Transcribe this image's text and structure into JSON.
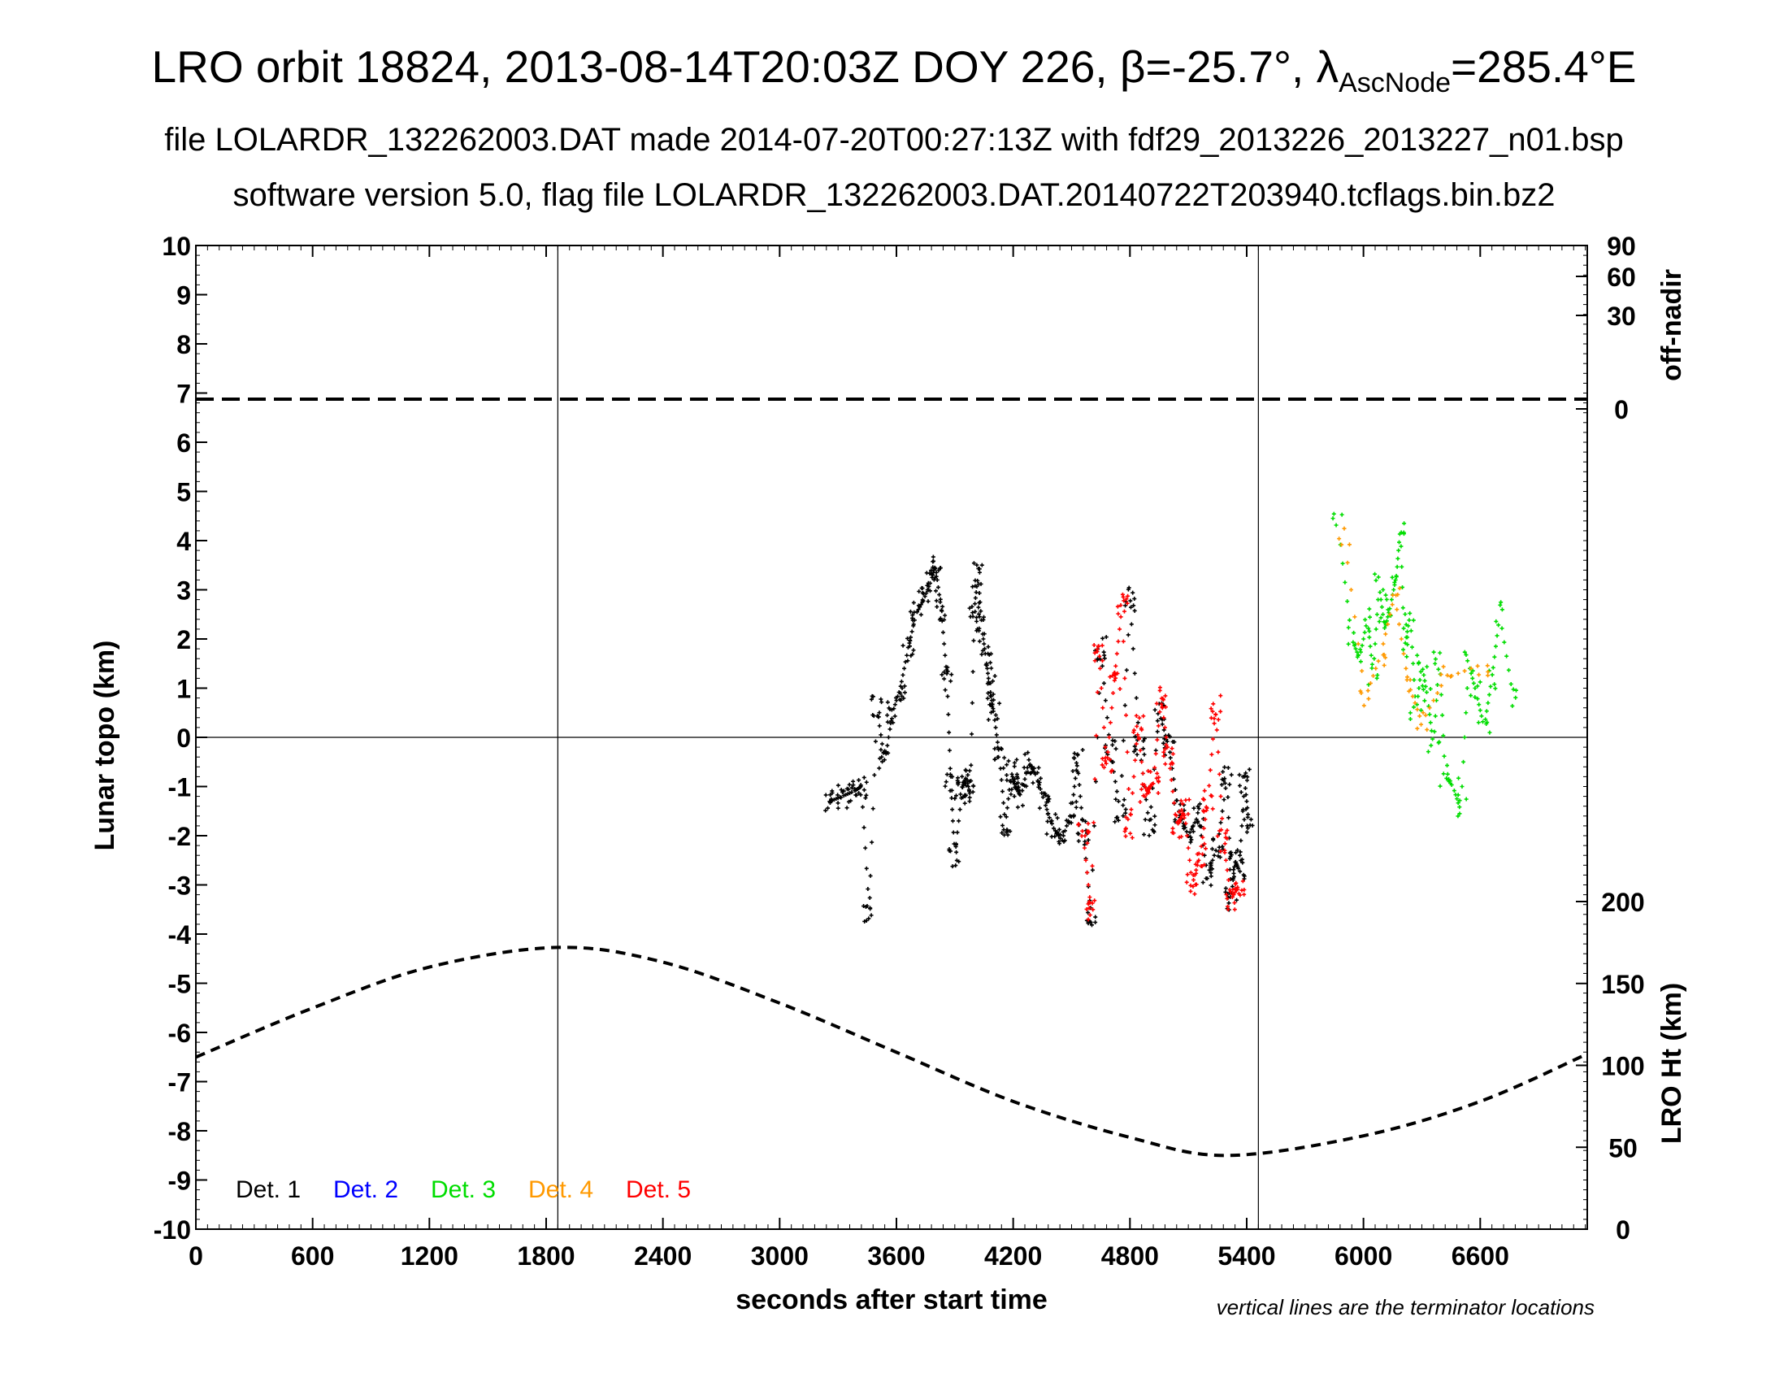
{
  "title": {
    "main_prefix": "LRO orbit 18824, 2013-08-14T20:03Z DOY 226, β=-25.7°, λ",
    "main_subscript": "AscNode",
    "main_suffix": "=285.4°E",
    "line2": "file LOLARDR_132262003.DAT made 2014-07-20T00:27:13Z with fdf29_2013226_2013227_n01.bsp",
    "line3": "software version 5.0, flag file LOLARDR_132262003.DAT.20140722T203940.tcflags.bin.bz2"
  },
  "chart_data": {
    "type": "scatter",
    "xlabel": "seconds after start time",
    "ylabel": "Lunar topo (km)",
    "xlim": [
      0,
      7150
    ],
    "ylim": [
      -10,
      10
    ],
    "xticks": [
      0,
      600,
      1200,
      1800,
      2400,
      3000,
      3600,
      4200,
      4800,
      5400,
      6000,
      6600
    ],
    "yticks": [
      -10,
      -9,
      -8,
      -7,
      -6,
      -5,
      -4,
      -3,
      -2,
      -1,
      0,
      1,
      2,
      3,
      4,
      5,
      6,
      7,
      8,
      9,
      10
    ],
    "terminator_lines_x": [
      1860,
      5460
    ],
    "zero_line_y": 0,
    "note": "vertical lines are the terminator locations",
    "right_axis_offnadir": {
      "label": "off-nadir",
      "ticks": [
        0,
        30,
        60,
        90
      ],
      "series_value_deg": 0
    },
    "right_axis_height": {
      "label": "LRO Ht (km)",
      "ticks": [
        0,
        50,
        100,
        150,
        200
      ],
      "series": {
        "name": "LRO Ht",
        "x": [
          0,
          600,
          1200,
          1860,
          2400,
          3000,
          3600,
          4200,
          4800,
          5300,
          6000,
          6600,
          7150
        ],
        "values": [
          105,
          135,
          160,
          172,
          163,
          138,
          108,
          78,
          56,
          45,
          57,
          78,
          107
        ]
      }
    },
    "legend": [
      {
        "name": "Det. 1",
        "color": "#000000"
      },
      {
        "name": "Det. 2",
        "color": "#0000ff"
      },
      {
        "name": "Det. 3",
        "color": "#00dd00"
      },
      {
        "name": "Det. 4",
        "color": "#ff9900"
      },
      {
        "name": "Det. 5",
        "color": "#ff0000"
      }
    ],
    "topo_series": [
      {
        "name": "Det. 1 / multi-detector track (dark)",
        "color": "#000000",
        "x": [
          3260,
          3320,
          3380,
          3420,
          3460,
          3500,
          3540,
          3580,
          3620,
          3660,
          3700,
          3740,
          3780,
          3800,
          3830,
          3860,
          3880,
          3900,
          3940,
          3960,
          3980,
          4000,
          4020,
          4040,
          4060,
          4080,
          4100,
          4130,
          4160,
          4190,
          4210,
          4240,
          4280,
          4320,
          4360,
          4400,
          4450,
          4500,
          4530,
          4560,
          4600,
          4650,
          4700,
          4750,
          4800,
          4850,
          4900,
          4950,
          5000,
          5050,
          5100,
          5150,
          5200,
          5250,
          5300,
          5320,
          5340,
          5360,
          5390,
          5410
        ],
        "values": [
          -1.3,
          -1.2,
          -1.1,
          -1.0,
          -3.5,
          0.6,
          -0.5,
          0.5,
          1.0,
          1.8,
          2.5,
          2.8,
          3.2,
          3.5,
          2.6,
          1.2,
          -1.0,
          -2.4,
          -1.0,
          -0.8,
          -1.2,
          2.6,
          3.3,
          2.2,
          1.6,
          1.0,
          0.5,
          -0.4,
          -1.8,
          -0.7,
          -1.0,
          -1.2,
          -0.5,
          -0.8,
          -1.3,
          -1.8,
          -2.1,
          -1.5,
          -0.5,
          -1.9,
          -3.6,
          1.8,
          -0.3,
          -1.5,
          2.8,
          -0.2,
          -1.8,
          0.5,
          -0.2,
          -1.5,
          -2.0,
          -1.6,
          -2.8,
          -2.2,
          -0.8,
          -3.3,
          -2.5,
          -2.7,
          -0.9,
          -1.7
        ]
      },
      {
        "name": "Det. 5 track",
        "color": "#ff0000",
        "x": [
          4560,
          4600,
          4640,
          4680,
          4720,
          4760,
          4800,
          4840,
          4880,
          4920,
          4960,
          5000,
          5040,
          5080,
          5120,
          5160,
          5200,
          5240,
          5280,
          5320,
          5360
        ],
        "values": [
          -2.0,
          -3.5,
          1.8,
          -0.6,
          1.2,
          2.7,
          -1.8,
          0.2,
          -1.2,
          -0.9,
          0.8,
          -0.4,
          -1.8,
          -1.5,
          -3.0,
          -2.4,
          -1.3,
          0.6,
          -2.1,
          -3.3,
          -3.0
        ]
      },
      {
        "name": "Det. 3 track",
        "color": "#00dd00",
        "x": [
          5870,
          5940,
          5980,
          6020,
          6050,
          6080,
          6110,
          6140,
          6170,
          6190,
          6210,
          6240,
          6270,
          6300,
          6330,
          6360,
          6390,
          6420,
          6460,
          6500,
          6540,
          6580,
          6620,
          6660,
          6700,
          6770
        ],
        "values": [
          4.3,
          2.0,
          1.6,
          2.4,
          1.3,
          3.1,
          2.2,
          2.7,
          3.3,
          4.3,
          1.8,
          2.5,
          0.5,
          1.5,
          0.8,
          -0.2,
          1.7,
          -0.8,
          -1.0,
          -1.5,
          1.5,
          0.9,
          0.2,
          1.2,
          2.5,
          0.8
        ]
      },
      {
        "name": "Det. 4 track",
        "color": "#ff9900",
        "x": [
          5900,
          6010,
          6090,
          6160,
          6230,
          6300,
          6420,
          6620
        ],
        "values": [
          4.1,
          0.8,
          1.7,
          2.9,
          1.1,
          0.3,
          1.2,
          1.5
        ]
      }
    ]
  }
}
